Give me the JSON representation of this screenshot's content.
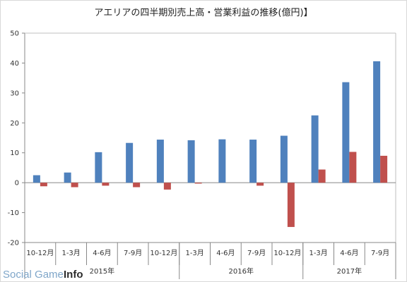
{
  "chart_data": {
    "type": "bar",
    "title": "アエリアの四半期別売上高・営業利益の推移(億円)】",
    "categories": [
      "10-12月",
      "1-3月",
      "4-6月",
      "7-9月",
      "10-12月",
      "1-3月",
      "4-6月",
      "7-9月",
      "10-12月",
      "1-3月",
      "4-6月",
      "7-9月"
    ],
    "year_groups": [
      {
        "label": "2015年",
        "count": 5
      },
      {
        "label": "2016年",
        "count": 4
      },
      {
        "label": "2017年",
        "count": 3
      }
    ],
    "series": [
      {
        "values": [
          2.5,
          3.4,
          10.2,
          13.3,
          14.4,
          14.2,
          14.5,
          14.4,
          15.7,
          22.5,
          33.6,
          40.6
        ]
      },
      {
        "values": [
          -1.2,
          -1.5,
          -1.0,
          -1.5,
          -2.3,
          -0.3,
          0,
          -1.0,
          -14.8,
          4.4,
          10.3,
          9.0
        ]
      }
    ],
    "ylim": [
      -20,
      50
    ],
    "yticks": [
      -20,
      -10,
      0,
      10,
      20,
      30,
      40,
      50
    ],
    "grid": false,
    "colors": {
      "series1": "#4f81bd",
      "series2": "#c0504d"
    }
  },
  "watermark": {
    "part1": "Social Game ",
    "part2": "Info"
  }
}
